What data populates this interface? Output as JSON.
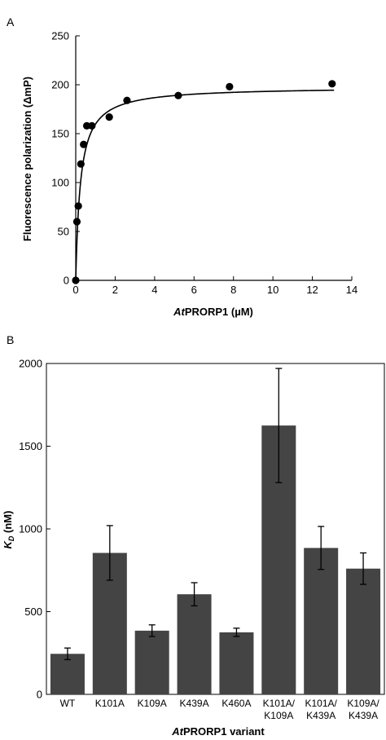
{
  "chart_data": [
    {
      "panel_label": "A",
      "type": "scatter",
      "fit_line": "saturation curve",
      "xlabel_italic": "At",
      "xlabel_rest": "PRORP1 (µM)",
      "ylabel": "Fluorescence polarization (ΔmP)",
      "xlim": [
        0,
        14
      ],
      "ylim": [
        0,
        250
      ],
      "xticks": [
        "0",
        "2",
        "4",
        "6",
        "8",
        "10",
        "12",
        "14"
      ],
      "yticks": [
        "0",
        "50",
        "100",
        "150",
        "200",
        "250"
      ],
      "points": [
        {
          "x": 0,
          "y": 0
        },
        {
          "x": 0.06,
          "y": 60
        },
        {
          "x": 0.13,
          "y": 76
        },
        {
          "x": 0.26,
          "y": 119
        },
        {
          "x": 0.4,
          "y": 139
        },
        {
          "x": 0.56,
          "y": 158
        },
        {
          "x": 0.82,
          "y": 158
        },
        {
          "x": 1.7,
          "y": 167
        },
        {
          "x": 2.6,
          "y": 184
        },
        {
          "x": 5.2,
          "y": 189
        },
        {
          "x": 7.8,
          "y": 198
        },
        {
          "x": 13.0,
          "y": 201
        }
      ],
      "fit": {
        "bmax": 198,
        "kd": 0.24
      }
    },
    {
      "panel_label": "B",
      "type": "bar",
      "xlabel_italic": "At",
      "xlabel_rest": "PRORP1 variant",
      "ylabel_italic": "K",
      "ylabel_sub": "D",
      "ylabel_rest": " (nM)",
      "ylim": [
        0,
        2000
      ],
      "yticks": [
        "0",
        "500",
        "1000",
        "1500",
        "2000"
      ],
      "categories": [
        [
          "WT"
        ],
        [
          "K101A"
        ],
        [
          "K109A"
        ],
        [
          "K439A"
        ],
        [
          "K460A"
        ],
        [
          "K101A/",
          "K109A"
        ],
        [
          "K101A/",
          "K439A"
        ],
        [
          "K109A/",
          "K439A"
        ]
      ],
      "values": [
        245,
        855,
        385,
        605,
        375,
        1625,
        885,
        760
      ],
      "errors": [
        35,
        165,
        35,
        70,
        25,
        345,
        130,
        95
      ],
      "bar_color": "#444444"
    }
  ]
}
